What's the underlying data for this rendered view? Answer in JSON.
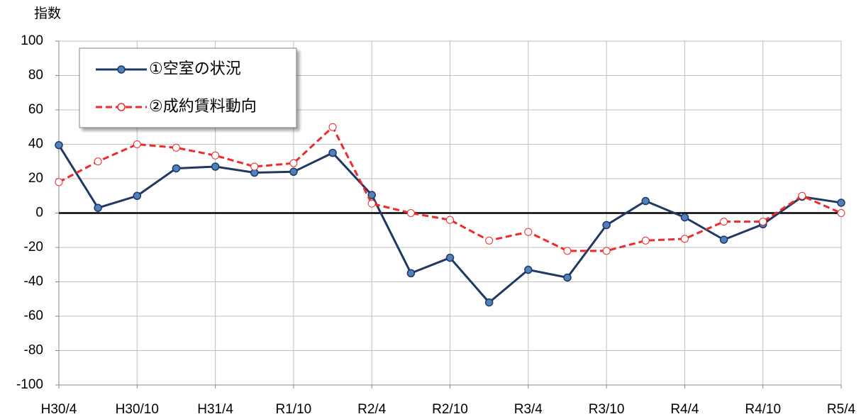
{
  "chart_data": {
    "type": "line",
    "ylabel": "指数",
    "categories": [
      "H30/4",
      null,
      "H30/10",
      null,
      "H31/4",
      null,
      "R1/10",
      null,
      "R2/4",
      null,
      "R2/10",
      null,
      "R3/4",
      null,
      "R3/10",
      null,
      "R4/4",
      null,
      "R4/10",
      null,
      "R5/4"
    ],
    "series": [
      {
        "name": "①空室の状況",
        "color": "#1f3864",
        "marker_fill": "#4f81bd",
        "dashed": false,
        "values": [
          39.5,
          3,
          10,
          26,
          27,
          23.5,
          24,
          35,
          10.5,
          -35,
          -26,
          -52,
          -33,
          -37.5,
          -7,
          7,
          -2.5,
          -15.5,
          -6.5,
          9.5,
          6
        ]
      },
      {
        "name": "②成約賃料動向",
        "color": "#ee2a2a",
        "marker_fill": "#ffffff",
        "dashed": true,
        "values": [
          18,
          30,
          40,
          38,
          33.5,
          27,
          29,
          50,
          5.5,
          0,
          -4,
          -16,
          -11,
          -22,
          -22,
          -16,
          -15,
          -5,
          -5,
          10,
          0
        ]
      }
    ],
    "ylim": [
      -100,
      100
    ],
    "yticks": [
      -100,
      -80,
      -60,
      -40,
      -20,
      0,
      20,
      40,
      60,
      80,
      100
    ],
    "grid": true,
    "legend": "upper left"
  }
}
